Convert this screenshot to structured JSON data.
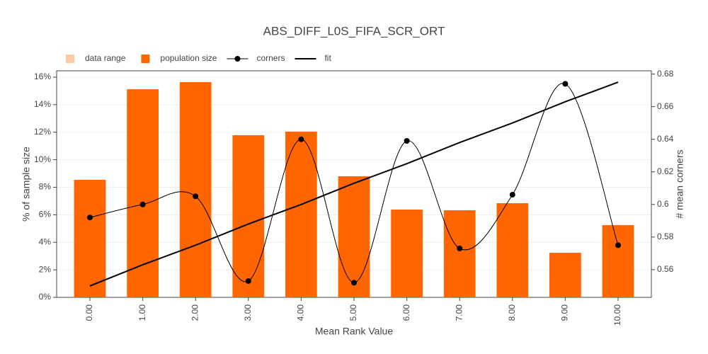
{
  "chart_data": {
    "type": "bar",
    "title": "ABS_DIFF_L0S_FIFA_SCR_ORT",
    "x_label": "Mean Rank Value",
    "y_label": "% of sample size",
    "y2_label": "# mean corners",
    "categories": [
      "0.00",
      "1.00",
      "2.00",
      "3.00",
      "4.00",
      "5.00",
      "6.00",
      "7.00",
      "8.00",
      "9.00",
      "10.00"
    ],
    "series": [
      {
        "name": "data range",
        "color": "#fdcaa6"
      },
      {
        "name": "population size",
        "color": "#ff6600",
        "type": "bar",
        "values": [
          8.54,
          15.12,
          15.64,
          11.78,
          12.04,
          8.8,
          6.38,
          6.33,
          6.84,
          3.24,
          5.25
        ]
      },
      {
        "name": "corners",
        "color": "#000000",
        "type": "spline",
        "axis": "y2",
        "values": [
          0.592,
          0.6,
          0.605,
          0.553,
          0.64,
          0.552,
          0.639,
          0.573,
          0.606,
          0.674,
          0.575
        ]
      },
      {
        "name": "fit",
        "color": "#000000",
        "type": "line",
        "axis": "y2",
        "values": [
          0.55,
          0.563,
          0.575,
          0.588,
          0.6,
          0.613,
          0.625,
          0.638,
          0.65,
          0.663,
          0.675
        ]
      }
    ],
    "ylim": [
      0,
      16.46
    ],
    "yticks": [
      {
        "value": 0,
        "label": "0%"
      },
      {
        "value": 2,
        "label": "2%"
      },
      {
        "value": 4,
        "label": "4%"
      },
      {
        "value": 6,
        "label": "6%"
      },
      {
        "value": 8,
        "label": "8%"
      },
      {
        "value": 10,
        "label": "10%"
      },
      {
        "value": 12,
        "label": "12%"
      },
      {
        "value": 14,
        "label": "14%"
      },
      {
        "value": 16,
        "label": "16%"
      }
    ],
    "y2lim": [
      0.543,
      0.682
    ],
    "y2ticks": [
      0.56,
      0.58,
      0.6,
      0.62,
      0.64,
      0.66,
      0.68
    ],
    "grid": true
  }
}
